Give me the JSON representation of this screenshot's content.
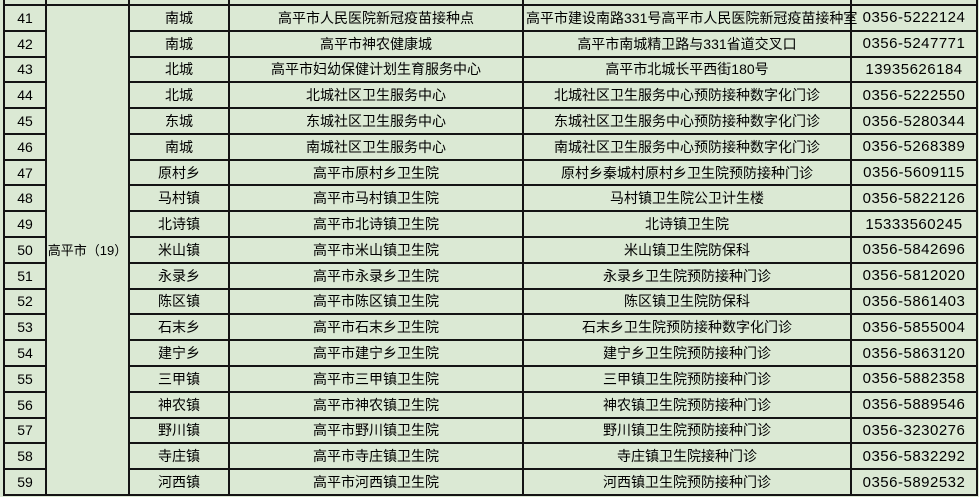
{
  "colors": {
    "background": "#dbe9d4",
    "grid_border": "#141414",
    "text": "#000000"
  },
  "table": {
    "group_label": "高平市（19）",
    "rows": [
      {
        "no": "41",
        "town": "南城",
        "facility": "高平市人民医院新冠疫苗接种点",
        "site": "高平市建设南路331号高平市人民医院新冠疫苗接种室",
        "phone": "0356-5222124"
      },
      {
        "no": "42",
        "town": "南城",
        "facility": "高平市神农健康城",
        "site": "高平市南城精卫路与331省道交叉口",
        "phone": "0356-5247771"
      },
      {
        "no": "43",
        "town": "北城",
        "facility": "高平市妇幼保健计划生育服务中心",
        "site": "高平市北城长平西街180号",
        "phone": "13935626184"
      },
      {
        "no": "44",
        "town": "北城",
        "facility": "北城社区卫生服务中心",
        "site": "北城社区卫生服务中心预防接种数字化门诊",
        "phone": "0356-5222550"
      },
      {
        "no": "45",
        "town": "东城",
        "facility": "东城社区卫生服务中心",
        "site": "东城社区卫生服务中心预防接种数字化门诊",
        "phone": "0356-5280344"
      },
      {
        "no": "46",
        "town": "南城",
        "facility": "南城社区卫生服务中心",
        "site": "南城社区卫生服务中心预防接种数字化门诊",
        "phone": "0356-5268389"
      },
      {
        "no": "47",
        "town": "原村乡",
        "facility": "高平市原村乡卫生院",
        "site": "原村乡秦城村原村乡卫生院预防接种门诊",
        "phone": "0356-5609115"
      },
      {
        "no": "48",
        "town": "马村镇",
        "facility": "高平市马村镇卫生院",
        "site": "马村镇卫生院公卫计生楼",
        "phone": "0356-5822126"
      },
      {
        "no": "49",
        "town": "北诗镇",
        "facility": "高平市北诗镇卫生院",
        "site": "北诗镇卫生院",
        "phone": "15333560245"
      },
      {
        "no": "50",
        "town": "米山镇",
        "facility": "高平市米山镇卫生院",
        "site": "米山镇卫生院防保科",
        "phone": "0356-5842696"
      },
      {
        "no": "51",
        "town": "永录乡",
        "facility": "高平市永录乡卫生院",
        "site": "永录乡卫生院预防接种门诊",
        "phone": "0356-5812020"
      },
      {
        "no": "52",
        "town": "陈区镇",
        "facility": "高平市陈区镇卫生院",
        "site": "陈区镇卫生院防保科",
        "phone": "0356-5861403"
      },
      {
        "no": "53",
        "town": "石末乡",
        "facility": "高平市石末乡卫生院",
        "site": "石末乡卫生院预防接种数字化门诊",
        "phone": "0356-5855004"
      },
      {
        "no": "54",
        "town": "建宁乡",
        "facility": "高平市建宁乡卫生院",
        "site": "建宁乡卫生院预防接种门诊",
        "phone": "0356-5863120"
      },
      {
        "no": "55",
        "town": "三甲镇",
        "facility": "高平市三甲镇卫生院",
        "site": "三甲镇卫生院预防接种门诊",
        "phone": "0356-5882358"
      },
      {
        "no": "56",
        "town": "神农镇",
        "facility": "高平市神农镇卫生院",
        "site": "神农镇卫生院预防接种门诊",
        "phone": "0356-5889546"
      },
      {
        "no": "57",
        "town": "野川镇",
        "facility": "高平市野川镇卫生院",
        "site": "野川镇卫生院预防接种门诊",
        "phone": "0356-3230276"
      },
      {
        "no": "58",
        "town": "寺庄镇",
        "facility": "高平市寺庄镇卫生院",
        "site": "寺庄镇卫生院接种门诊",
        "phone": "0356-5832292"
      },
      {
        "no": "59",
        "town": "河西镇",
        "facility": "高平市河西镇卫生院",
        "site": "河西镇卫生院预防接种门诊",
        "phone": "0356-5892532"
      }
    ]
  }
}
